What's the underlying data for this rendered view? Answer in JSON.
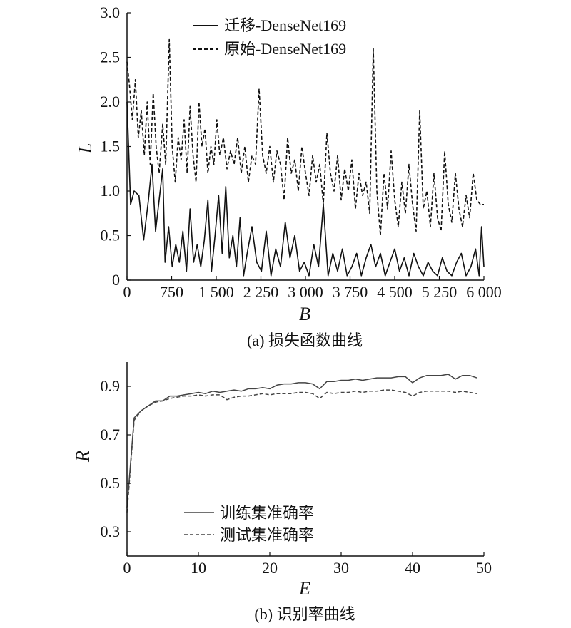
{
  "chart_data": [
    {
      "type": "line",
      "caption": "(a) 损失函数曲线",
      "xlabel": "B",
      "ylabel": "L",
      "xlim": [
        0,
        6000
      ],
      "ylim": [
        0,
        3.0
      ],
      "xticks": [
        0,
        750,
        1500,
        2250,
        3000,
        3750,
        4500,
        5250,
        6000
      ],
      "xtick_labels": [
        "0",
        "750",
        "1 500",
        "2 250",
        "3 000",
        "3 750",
        "4 500",
        "5 250",
        "6 000"
      ],
      "yticks": [
        0,
        0.5,
        1.0,
        1.5,
        2.0,
        2.5,
        3.0
      ],
      "ytick_labels": [
        "0",
        "0.5",
        "1.0",
        "1.5",
        "2.0",
        "2.5",
        "3.0"
      ],
      "legend_position": "top-center",
      "series": [
        {
          "name": "迁移-DenseNet169",
          "style": "solid",
          "color": "#111111",
          "x": [
            0,
            60,
            120,
            200,
            280,
            360,
            420,
            480,
            540,
            600,
            640,
            700,
            760,
            820,
            880,
            940,
            1000,
            1060,
            1120,
            1180,
            1240,
            1300,
            1360,
            1420,
            1480,
            1540,
            1600,
            1660,
            1720,
            1780,
            1840,
            1900,
            1960,
            2020,
            2100,
            2180,
            2260,
            2340,
            2420,
            2500,
            2580,
            2660,
            2740,
            2820,
            2900,
            2980,
            3060,
            3140,
            3220,
            3300,
            3380,
            3460,
            3540,
            3620,
            3700,
            3780,
            3860,
            3940,
            4020,
            4100,
            4180,
            4260,
            4340,
            4420,
            4500,
            4580,
            4660,
            4740,
            4820,
            4900,
            4980,
            5060,
            5140,
            5220,
            5300,
            5380,
            5460,
            5540,
            5620,
            5700,
            5780,
            5860,
            5920,
            5960,
            6000
          ],
          "y": [
            2.0,
            0.85,
            1.0,
            0.95,
            0.45,
            0.9,
            1.3,
            0.55,
            0.9,
            1.25,
            0.2,
            0.6,
            0.15,
            0.4,
            0.2,
            0.55,
            0.1,
            0.8,
            0.2,
            0.4,
            0.15,
            0.45,
            0.9,
            0.1,
            0.5,
            0.95,
            0.3,
            1.05,
            0.25,
            0.5,
            0.15,
            0.7,
            0.05,
            0.3,
            0.6,
            0.2,
            0.1,
            0.55,
            0.05,
            0.35,
            0.15,
            0.65,
            0.25,
            0.5,
            0.1,
            0.2,
            0.05,
            0.4,
            0.15,
            0.85,
            0.05,
            0.3,
            0.1,
            0.35,
            0.05,
            0.15,
            0.3,
            0.05,
            0.25,
            0.4,
            0.15,
            0.3,
            0.05,
            0.2,
            0.35,
            0.1,
            0.25,
            0.05,
            0.3,
            0.15,
            0.05,
            0.2,
            0.1,
            0.05,
            0.25,
            0.1,
            0.05,
            0.2,
            0.3,
            0.05,
            0.15,
            0.35,
            0.05,
            0.6,
            0.15
          ]
        },
        {
          "name": "原始-DenseNet169",
          "style": "dashed",
          "color": "#111111",
          "x": [
            0,
            40,
            90,
            140,
            190,
            240,
            290,
            340,
            390,
            440,
            490,
            540,
            600,
            650,
            710,
            760,
            810,
            860,
            910,
            960,
            1010,
            1060,
            1110,
            1160,
            1210,
            1260,
            1310,
            1360,
            1410,
            1460,
            1510,
            1560,
            1620,
            1680,
            1740,
            1800,
            1860,
            1920,
            1980,
            2040,
            2100,
            2160,
            2220,
            2280,
            2340,
            2400,
            2460,
            2520,
            2580,
            2640,
            2700,
            2760,
            2820,
            2880,
            2940,
            3000,
            3060,
            3120,
            3180,
            3240,
            3300,
            3360,
            3420,
            3480,
            3540,
            3600,
            3660,
            3720,
            3780,
            3840,
            3900,
            3960,
            4020,
            4080,
            4140,
            4200,
            4260,
            4320,
            4380,
            4440,
            4500,
            4560,
            4620,
            4680,
            4740,
            4800,
            4860,
            4920,
            4980,
            5040,
            5100,
            5160,
            5220,
            5280,
            5340,
            5400,
            5460,
            5520,
            5580,
            5640,
            5700,
            5760,
            5820,
            5880,
            5940,
            6000
          ],
          "y": [
            2.45,
            2.2,
            1.8,
            2.25,
            1.6,
            1.9,
            1.4,
            2.0,
            1.3,
            2.1,
            1.5,
            1.2,
            1.75,
            1.3,
            2.7,
            1.5,
            1.1,
            1.6,
            1.35,
            1.8,
            1.2,
            1.95,
            1.4,
            1.1,
            2.0,
            1.5,
            1.7,
            1.2,
            1.5,
            1.3,
            1.8,
            1.4,
            1.6,
            1.25,
            1.45,
            1.3,
            1.6,
            1.2,
            1.5,
            1.1,
            1.4,
            1.3,
            2.15,
            1.4,
            1.2,
            1.5,
            1.1,
            1.45,
            1.3,
            0.9,
            1.6,
            1.2,
            1.35,
            1.0,
            1.5,
            1.2,
            0.95,
            1.4,
            1.1,
            1.3,
            0.85,
            1.65,
            1.2,
            1.0,
            1.4,
            0.9,
            1.25,
            1.0,
            1.35,
            0.8,
            1.2,
            0.95,
            1.1,
            0.75,
            2.6,
            1.0,
            0.5,
            1.2,
            0.8,
            1.45,
            0.9,
            0.6,
            1.1,
            0.75,
            1.3,
            0.85,
            0.55,
            1.9,
            0.8,
            1.0,
            0.6,
            1.2,
            0.7,
            0.55,
            1.45,
            0.85,
            0.65,
            1.2,
            0.8,
            0.6,
            0.95,
            0.7,
            1.2,
            0.9,
            0.85,
            0.85
          ]
        }
      ]
    },
    {
      "type": "line",
      "caption": "(b) 识别率曲线",
      "xlabel": "E",
      "ylabel": "R",
      "xlim": [
        0,
        50
      ],
      "ylim": [
        0.2,
        1.0
      ],
      "xticks": [
        0,
        10,
        20,
        30,
        40,
        50
      ],
      "xtick_labels": [
        "0",
        "10",
        "20",
        "30",
        "40",
        "50"
      ],
      "yticks": [
        0.3,
        0.5,
        0.7,
        0.9
      ],
      "ytick_labels": [
        "0.3",
        "0.5",
        "0.7",
        "0.9"
      ],
      "legend_position": "bottom-center",
      "series": [
        {
          "name": "训练集准确率",
          "style": "solid",
          "color": "#444444",
          "x": [
            0,
            1,
            2,
            3,
            4,
            5,
            6,
            7,
            8,
            9,
            10,
            11,
            12,
            13,
            14,
            15,
            16,
            17,
            18,
            19,
            20,
            21,
            22,
            23,
            24,
            25,
            26,
            27,
            28,
            29,
            30,
            31,
            32,
            33,
            34,
            35,
            36,
            37,
            38,
            39,
            40,
            41,
            42,
            43,
            44,
            45,
            46,
            47,
            48,
            49
          ],
          "y": [
            0.4,
            0.77,
            0.8,
            0.82,
            0.84,
            0.84,
            0.86,
            0.86,
            0.865,
            0.87,
            0.875,
            0.87,
            0.88,
            0.875,
            0.88,
            0.885,
            0.88,
            0.89,
            0.89,
            0.895,
            0.89,
            0.905,
            0.91,
            0.91,
            0.915,
            0.915,
            0.91,
            0.89,
            0.92,
            0.92,
            0.925,
            0.925,
            0.93,
            0.925,
            0.93,
            0.935,
            0.935,
            0.935,
            0.94,
            0.94,
            0.915,
            0.935,
            0.945,
            0.945,
            0.945,
            0.95,
            0.93,
            0.945,
            0.945,
            0.935
          ]
        },
        {
          "name": "测试集准确率",
          "style": "dashed",
          "color": "#444444",
          "x": [
            0,
            1,
            2,
            3,
            4,
            5,
            6,
            7,
            8,
            9,
            10,
            11,
            12,
            13,
            14,
            15,
            16,
            17,
            18,
            19,
            20,
            21,
            22,
            23,
            24,
            25,
            26,
            27,
            28,
            29,
            30,
            31,
            32,
            33,
            34,
            35,
            36,
            37,
            38,
            39,
            40,
            41,
            42,
            43,
            44,
            45,
            46,
            47,
            48,
            49
          ],
          "y": [
            0.38,
            0.76,
            0.8,
            0.82,
            0.835,
            0.84,
            0.85,
            0.855,
            0.86,
            0.86,
            0.865,
            0.86,
            0.865,
            0.865,
            0.845,
            0.855,
            0.86,
            0.86,
            0.865,
            0.87,
            0.865,
            0.87,
            0.87,
            0.87,
            0.875,
            0.875,
            0.87,
            0.85,
            0.875,
            0.87,
            0.875,
            0.875,
            0.88,
            0.875,
            0.88,
            0.88,
            0.885,
            0.885,
            0.88,
            0.875,
            0.86,
            0.875,
            0.88,
            0.88,
            0.88,
            0.88,
            0.875,
            0.88,
            0.875,
            0.87
          ]
        }
      ]
    }
  ]
}
